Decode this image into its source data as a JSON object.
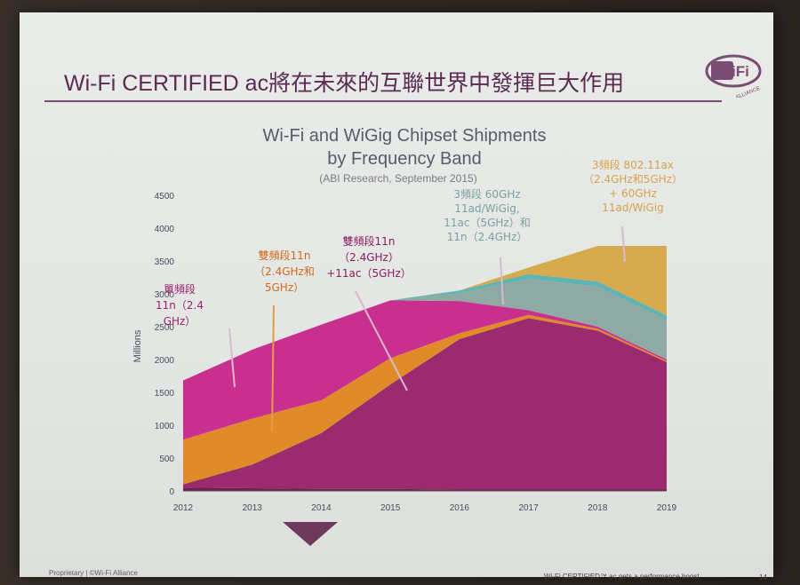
{
  "slide": {
    "title": "Wi-Fi CERTIFIED ac將在未來的互聯世界中發揮巨大作用",
    "logo_text": "WiFi",
    "logo_subtext": "ALLIANCE",
    "footer_left": "Proprietary | ©Wi-Fi Alliance",
    "footer_right": "Wi-Fi CERTIFIED™ ac gets a performance boost",
    "page_number": "14"
  },
  "chart_data": {
    "type": "area",
    "title_line1": "Wi-Fi and WiGig Chipset Shipments",
    "title_line2": "by Frequency Band",
    "subtitle": "(ABI Research, September 2015)",
    "ylabel": "Millions",
    "ylim": [
      0,
      4500
    ],
    "yticks": [
      "0",
      "500",
      "1000",
      "1500",
      "2000",
      "2500",
      "3000",
      "3500",
      "4000",
      "4500"
    ],
    "x": [
      "2012",
      "2013",
      "2014",
      "2015",
      "2016",
      "2017",
      "2018",
      "2019"
    ],
    "series": [
      {
        "key": "s1",
        "color": "#6e1f56",
        "values": [
          50,
          40,
          30,
          30,
          20,
          20,
          20,
          20
        ]
      },
      {
        "key": "s2",
        "color": "#9b2a6e",
        "values": [
          50,
          360,
          850,
          1590,
          2290,
          2610,
          2420,
          1940
        ]
      },
      {
        "key": "s3",
        "color": "#e08a2a",
        "values": [
          680,
          700,
          500,
          400,
          90,
          50,
          30,
          20
        ]
      },
      {
        "key": "s4",
        "color": "#c92f8f",
        "values": [
          900,
          1050,
          1150,
          880,
          490,
          70,
          30,
          20
        ]
      },
      {
        "key": "s5",
        "color": "#8fa9a4",
        "values": [
          0,
          0,
          0,
          0,
          120,
          480,
          610,
          600
        ]
      },
      {
        "key": "s6",
        "color": "#5fb3b0",
        "values": [
          0,
          0,
          0,
          0,
          40,
          70,
          80,
          70
        ]
      },
      {
        "key": "s7",
        "color": "#d8aa4e",
        "values": [
          0,
          0,
          0,
          0,
          0,
          100,
          540,
          1060
        ]
      }
    ],
    "annotations": [
      {
        "key": "a1",
        "color": "#9b1f6a",
        "lines": [
          "單頻段",
          "11n（2.4",
          "GHz）"
        ]
      },
      {
        "key": "a2",
        "color": "#d2691e",
        "lines": [
          "雙頻段11n",
          "（2.4GHz和",
          "5GHz）"
        ]
      },
      {
        "key": "a3",
        "color": "#8b1c60",
        "lines": [
          "雙頻段11n",
          "（2.4GHz）",
          "+11ac（5GHz）"
        ]
      },
      {
        "key": "a4",
        "color": "#7aa0a0",
        "lines": [
          "3頻段 60GHz",
          "11ad/WiGig,",
          "11ac（5GHz）和",
          "11n（2.4GHz）"
        ]
      },
      {
        "key": "a5",
        "color": "#d6a24c",
        "lines": [
          "3頻段 802.11ax",
          "（2.4GHz和5GHz）",
          "+ 60GHz",
          "11ad/WiGig"
        ]
      }
    ]
  }
}
